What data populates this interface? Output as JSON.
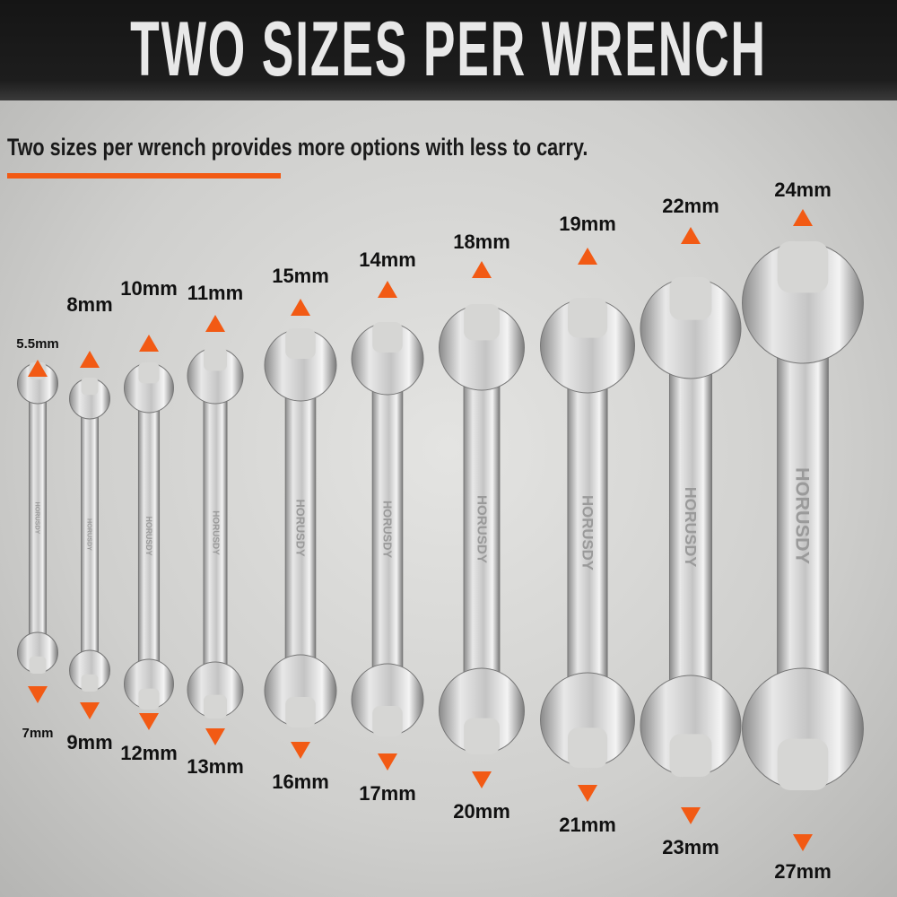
{
  "header": {
    "title": "TWO SIZES PER WRENCH"
  },
  "subtitle": "Two sizes per wrench provides more options with less to carry.",
  "brand": "HORUSDY",
  "colors": {
    "accent": "#f25a14",
    "banner": "#1a1a1a",
    "text": "#111111"
  },
  "wrenches": [
    {
      "top": "5.5mm",
      "bottom": "7mm"
    },
    {
      "top": "8mm",
      "bottom": "9mm"
    },
    {
      "top": "10mm",
      "bottom": "12mm"
    },
    {
      "top": "11mm",
      "bottom": "13mm"
    },
    {
      "top": "15mm",
      "bottom": "16mm"
    },
    {
      "top": "14mm",
      "bottom": "17mm"
    },
    {
      "top": "18mm",
      "bottom": "20mm"
    },
    {
      "top": "19mm",
      "bottom": "21mm"
    },
    {
      "top": "22mm",
      "bottom": "23mm"
    },
    {
      "top": "24mm",
      "bottom": "27mm"
    }
  ]
}
